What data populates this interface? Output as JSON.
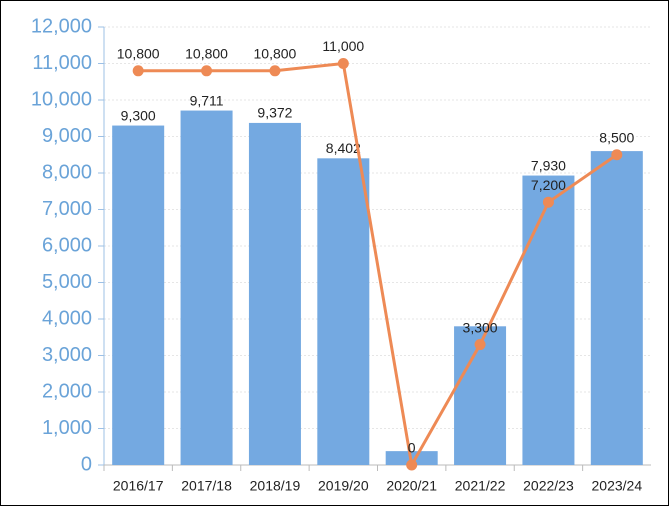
{
  "chart_data": {
    "type": "bar_line",
    "categories": [
      "2016/17",
      "2017/18",
      "2018/19",
      "2019/20",
      "2020/21",
      "2021/22",
      "2022/23",
      "2023/24"
    ],
    "series": [
      {
        "type": "bar",
        "color": "#74a9e1",
        "values": [
          9300,
          9711,
          9372,
          8402,
          380,
          3800,
          7930,
          8600
        ],
        "value_labels": [
          "9,300",
          "9,711",
          "9,372",
          "8,402",
          null,
          null,
          "7,930",
          null
        ]
      },
      {
        "type": "line",
        "color": "#ee8a55",
        "values": [
          10800,
          10800,
          10800,
          11000,
          0,
          3300,
          7200,
          8500
        ],
        "value_labels": [
          "10,800",
          "10,800",
          "10,800",
          "11,000",
          "0",
          "3,300",
          "7,200",
          "8,500"
        ]
      }
    ],
    "ylim": [
      0,
      12000
    ],
    "yticks": [
      0,
      {
        "value": 1000,
        "label": "1,000"
      },
      {
        "value": 2000,
        "label": "2,000"
      },
      {
        "value": 3000,
        "label": "3,000"
      },
      {
        "value": 4000,
        "label": "4,000"
      },
      {
        "value": 5000,
        "label": "5,000"
      },
      {
        "value": 6000,
        "label": "6,000"
      },
      {
        "value": 7000,
        "label": "7,000"
      },
      {
        "value": 8000,
        "label": "8,000"
      },
      {
        "value": 9000,
        "label": "9,000"
      },
      {
        "value": 10000,
        "label": "10,000"
      },
      {
        "value": 11000,
        "label": "11,000"
      },
      {
        "value": 12000,
        "label": "12,000"
      }
    ],
    "grid": true
  }
}
